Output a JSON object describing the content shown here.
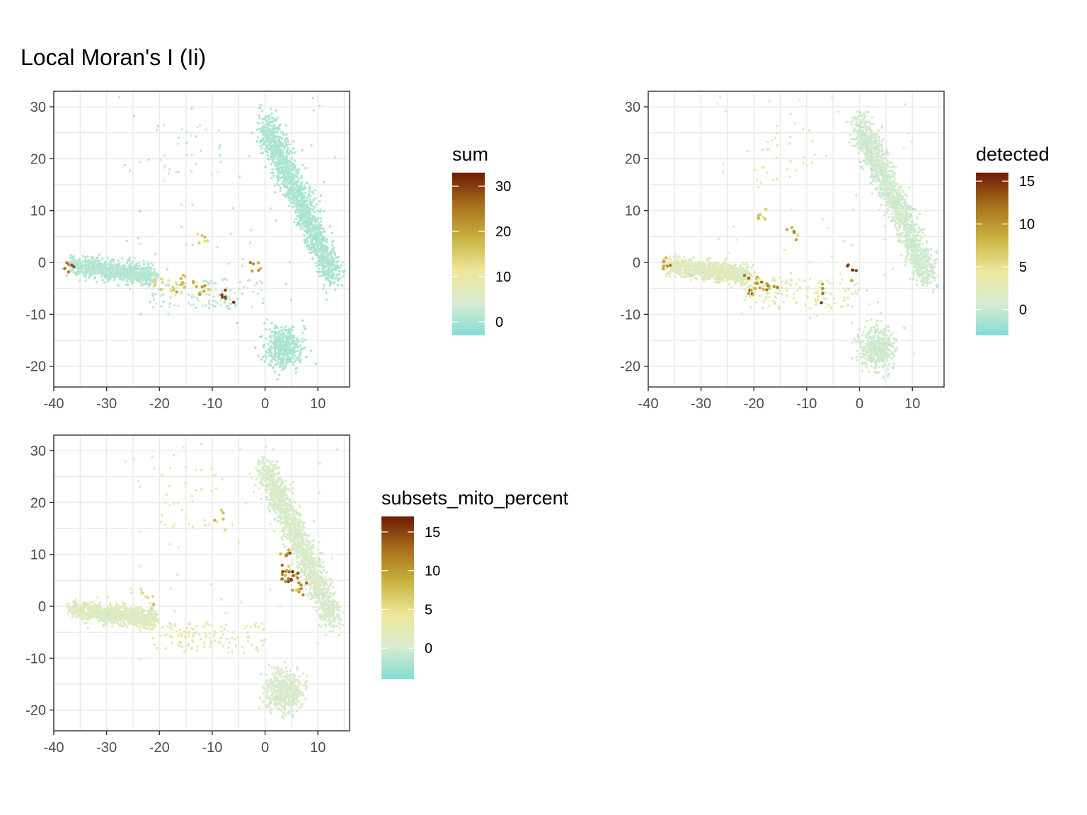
{
  "title": "Local Moran's I (Ii)",
  "colors": {
    "scale": [
      "#84ddd6",
      "#d8eccf",
      "#efe69a",
      "#c9b23f",
      "#a86f1c",
      "#6e1a03"
    ]
  },
  "chart_data": [
    {
      "type": "scatter",
      "legend_title": "sum",
      "legend_ticks": [
        0,
        10,
        20,
        30
      ],
      "color_range": [
        -3,
        33
      ],
      "xlim": [
        -40,
        16
      ],
      "ylim": [
        -24,
        33
      ],
      "x_ticks": [
        -40,
        -30,
        -20,
        -10,
        0,
        10
      ],
      "y_ticks": [
        -20,
        -10,
        0,
        10,
        20,
        30
      ],
      "grid": true,
      "legend_position": "right",
      "seed": 11,
      "hotspots": [
        {
          "x": -18,
          "y": -4.5,
          "v": 18
        },
        {
          "x": -16,
          "y": -4.5,
          "v": 20
        },
        {
          "x": -20,
          "y": -4,
          "v": 16
        },
        {
          "x": -11,
          "y": -5.5,
          "v": 22
        },
        {
          "x": -7.5,
          "y": -6,
          "v": 33
        },
        {
          "x": -1,
          "y": -1,
          "v": 24
        },
        {
          "x": -37,
          "y": -0.5,
          "v": 28
        },
        {
          "x": -14,
          "y": -4,
          "v": 20
        },
        {
          "x": -12,
          "y": 5,
          "v": 18
        }
      ]
    },
    {
      "type": "scatter",
      "legend_title": "detected",
      "legend_ticks": [
        0,
        5,
        10,
        15
      ],
      "color_range": [
        -3,
        16
      ],
      "xlim": [
        -40,
        16
      ],
      "ylim": [
        -24,
        33
      ],
      "x_ticks": [
        -40,
        -30,
        -20,
        -10,
        0,
        10
      ],
      "y_ticks": [
        -20,
        -10,
        0,
        10,
        20,
        30
      ],
      "grid": true,
      "legend_position": "right",
      "seed": 23,
      "hotspots": [
        {
          "x": -20,
          "y": -4,
          "v": 14
        },
        {
          "x": -18,
          "y": -5,
          "v": 13
        },
        {
          "x": -16,
          "y": -4.5,
          "v": 12
        },
        {
          "x": -21,
          "y": -6,
          "v": 15
        },
        {
          "x": -7,
          "y": -6,
          "v": 15
        },
        {
          "x": -1.5,
          "y": -2,
          "v": 16
        },
        {
          "x": -37,
          "y": -0.5,
          "v": 13
        },
        {
          "x": -12,
          "y": 5,
          "v": 12
        },
        {
          "x": -19,
          "y": 9,
          "v": 10
        }
      ]
    },
    {
      "type": "scatter",
      "legend_title": "subsets_mito_percent",
      "legend_ticks": [
        0,
        5,
        10,
        15
      ],
      "color_range": [
        -4,
        17
      ],
      "xlim": [
        -40,
        16
      ],
      "ylim": [
        -24,
        33
      ],
      "x_ticks": [
        -40,
        -30,
        -20,
        -10,
        0,
        10
      ],
      "y_ticks": [
        -20,
        -10,
        0,
        10,
        20,
        30
      ],
      "grid": true,
      "legend_position": "right",
      "seed": 37,
      "hotspots": [
        {
          "x": 5,
          "y": 5,
          "v": 17
        },
        {
          "x": 4,
          "y": 6,
          "v": 16
        },
        {
          "x": 6,
          "y": 4,
          "v": 15
        },
        {
          "x": 4,
          "y": 11,
          "v": 14
        },
        {
          "x": 3,
          "y": 7,
          "v": 13
        },
        {
          "x": 7,
          "y": 3,
          "v": 12
        },
        {
          "x": -23,
          "y": 2.5,
          "v": 10
        },
        {
          "x": -8.5,
          "y": 17,
          "v": 10
        },
        {
          "x": -21,
          "y": 0,
          "v": 8
        }
      ]
    }
  ]
}
